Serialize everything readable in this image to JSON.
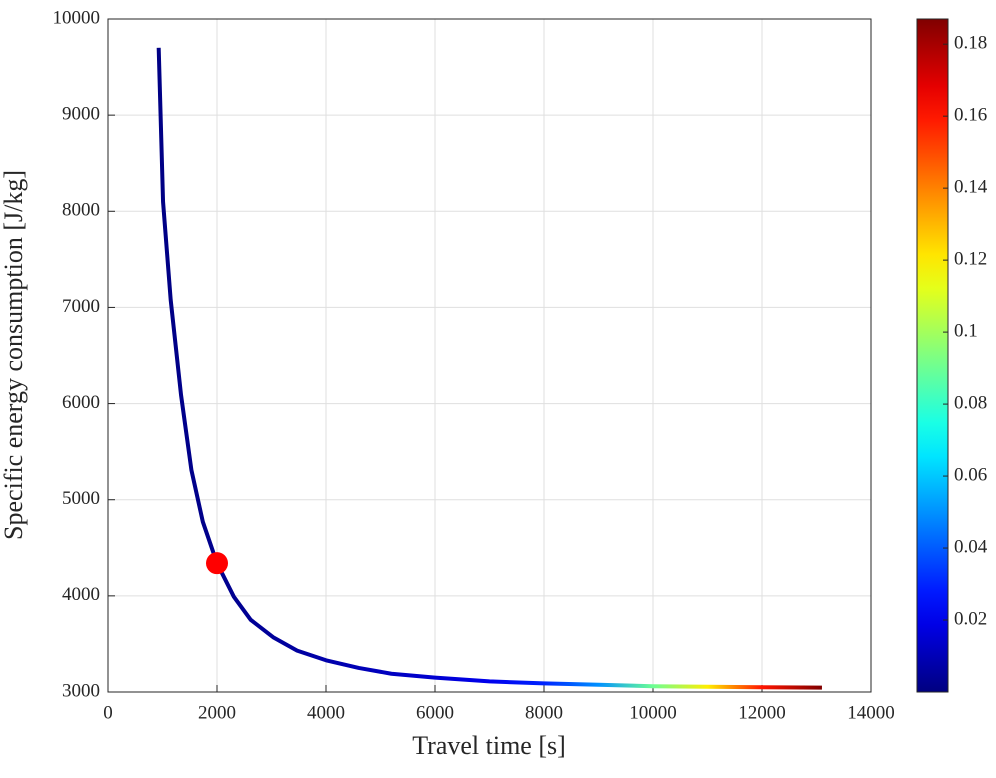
{
  "chart_data": {
    "type": "line",
    "xlabel": "Travel time [s]",
    "ylabel": "Specific energy consumption [J/kg]",
    "x": [
      930,
      1010,
      1150,
      1340,
      1530,
      1740,
      2000,
      2310,
      2620,
      3030,
      3470,
      4000,
      4600,
      5200,
      6000,
      7000,
      8000,
      9000,
      10000,
      11000,
      12000,
      13100
    ],
    "values": [
      9700,
      8100,
      7080,
      6090,
      5310,
      4770,
      4340,
      3990,
      3750,
      3570,
      3430,
      3330,
      3250,
      3190,
      3150,
      3110,
      3090,
      3075,
      3060,
      3055,
      3050,
      3045
    ],
    "color_values": [
      0.001,
      0.001,
      0.001,
      0.002,
      0.002,
      0.002,
      0.003,
      0.003,
      0.004,
      0.005,
      0.006,
      0.008,
      0.01,
      0.012,
      0.015,
      0.02,
      0.03,
      0.05,
      0.09,
      0.12,
      0.16,
      0.187
    ],
    "colormap": "jet",
    "clim": [
      0,
      0.187
    ],
    "cticks": [
      0.02,
      0.04,
      0.06,
      0.08,
      0.1,
      0.12,
      0.14,
      0.16,
      0.18
    ],
    "marker": {
      "x": 2000,
      "y": 4340,
      "color": "#ff0000"
    },
    "xlim": [
      0,
      14000
    ],
    "xticks": [
      0,
      2000,
      4000,
      6000,
      8000,
      10000,
      12000,
      14000
    ],
    "ylim": [
      3000,
      10000
    ],
    "yticks": [
      3000,
      4000,
      5000,
      6000,
      7000,
      8000,
      9000,
      10000
    ],
    "grid": true
  }
}
